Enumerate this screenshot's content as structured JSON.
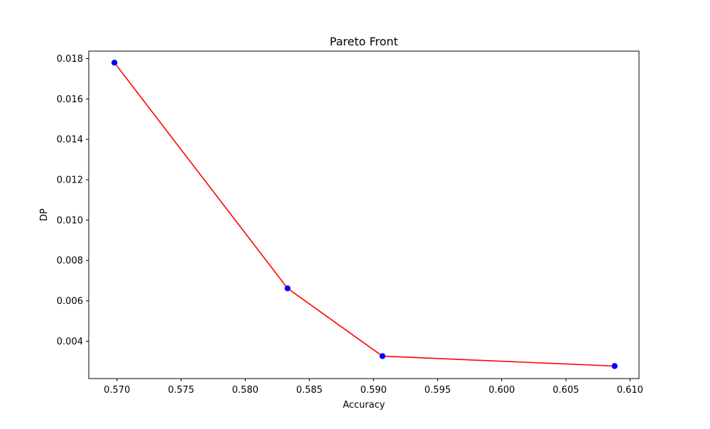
{
  "chart_data": {
    "type": "line",
    "title": "Pareto Front",
    "xlabel": "Accuracy",
    "ylabel": "DP",
    "xlim": [
      0.5678,
      0.6107
    ],
    "ylim": [
      0.00215,
      0.01837
    ],
    "xticks": [
      0.57,
      0.575,
      0.58,
      0.585,
      0.59,
      0.595,
      0.6,
      0.605,
      0.61
    ],
    "xtick_labels": [
      "0.570",
      "0.575",
      "0.580",
      "0.585",
      "0.590",
      "0.595",
      "0.600",
      "0.605",
      "0.610"
    ],
    "yticks": [
      0.004,
      0.006,
      0.008,
      0.01,
      0.012,
      0.014,
      0.016,
      0.018
    ],
    "ytick_labels": [
      "0.004",
      "0.006",
      "0.008",
      "0.010",
      "0.012",
      "0.014",
      "0.016",
      "0.018"
    ],
    "grid": false,
    "legend": false,
    "series": [
      {
        "x": [
          0.5698,
          0.5833,
          0.5907,
          0.6088
        ],
        "y": [
          0.0178,
          0.00662,
          0.00326,
          0.00277
        ],
        "line_color": "#ff0000",
        "marker_color": "#0000ff"
      }
    ]
  }
}
